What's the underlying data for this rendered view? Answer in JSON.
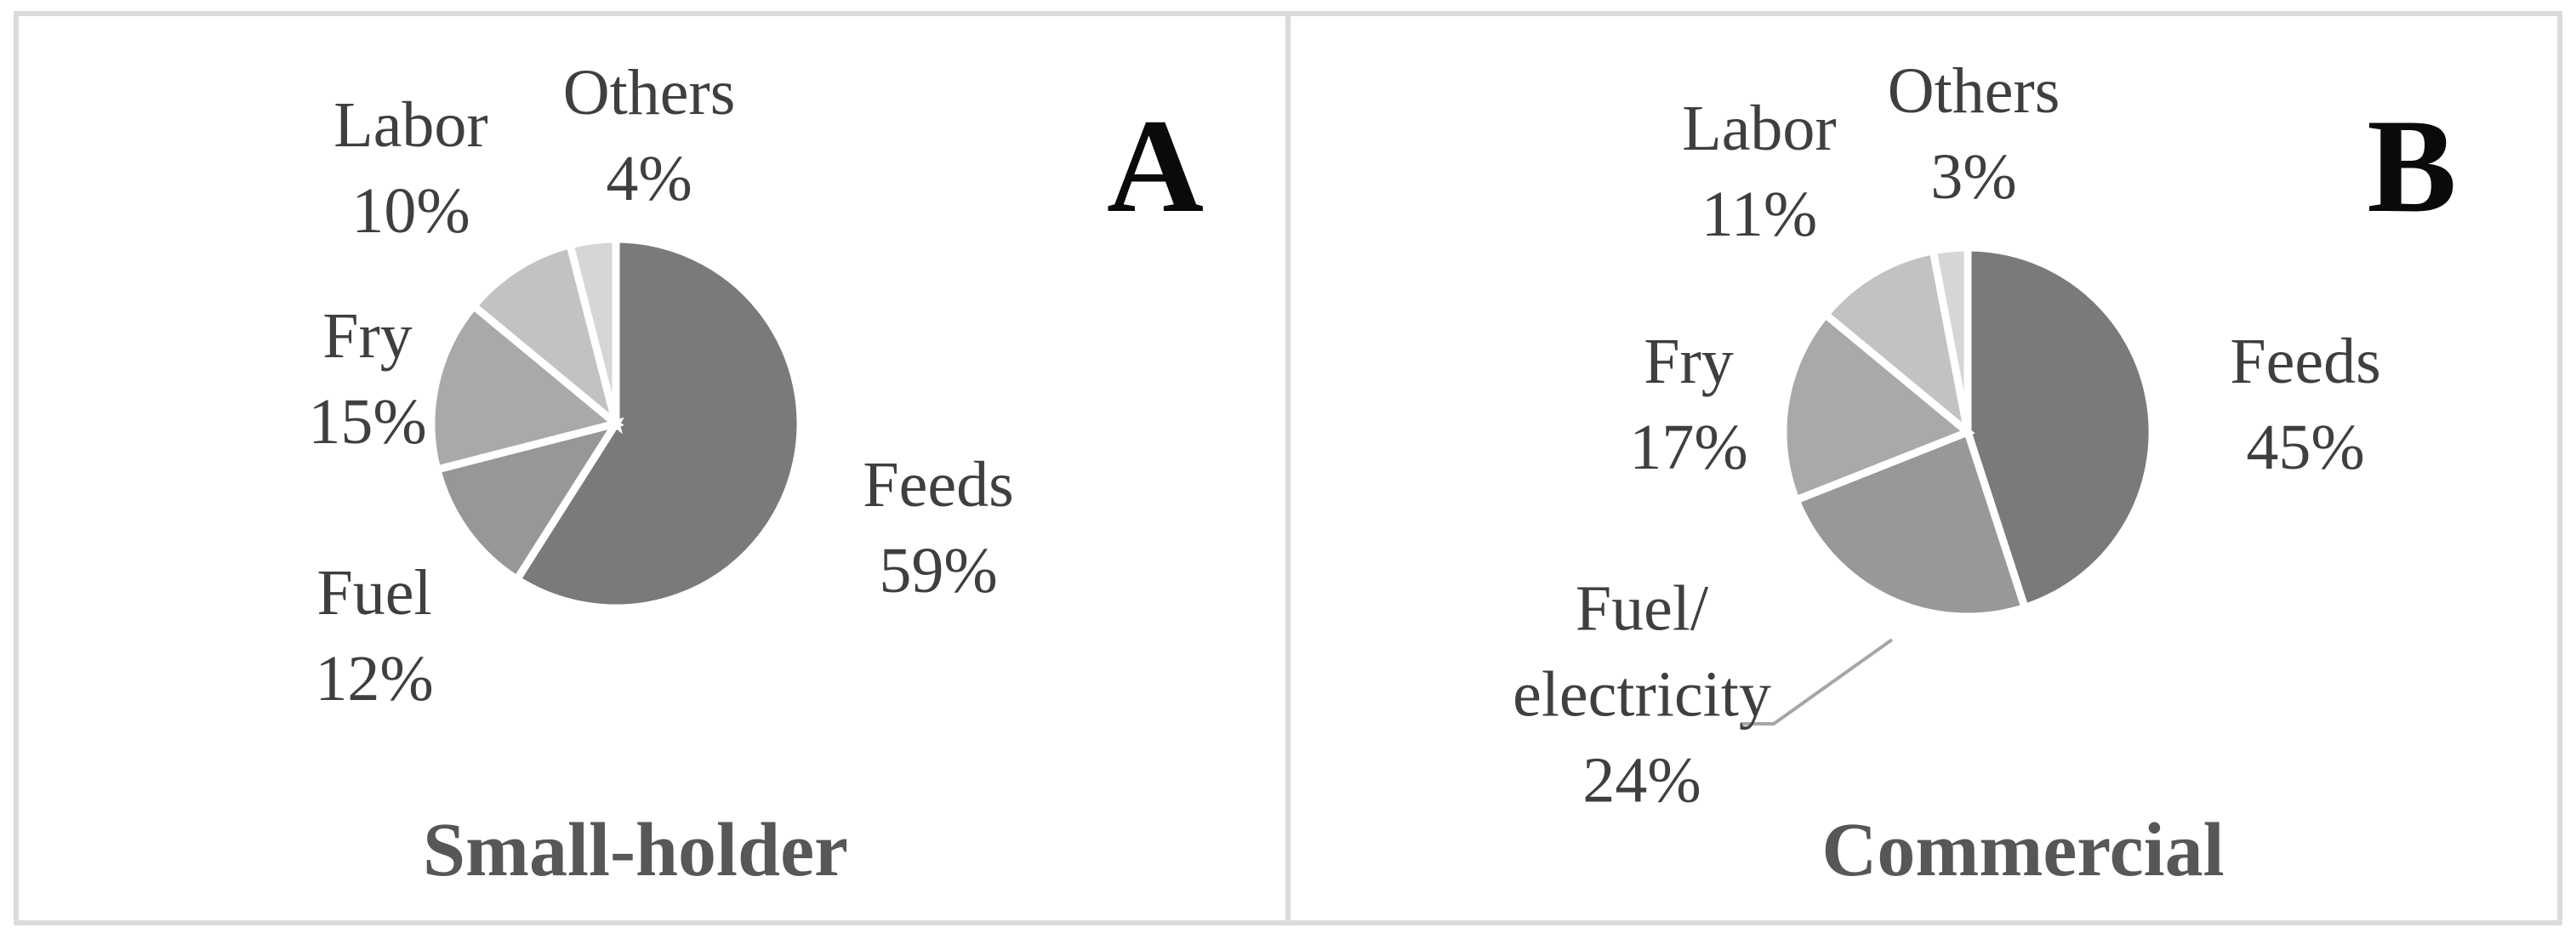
{
  "figure": {
    "background": "#ffffff",
    "border_color": "#dbdbdb"
  },
  "panels": [
    {
      "letter": "A",
      "title": "Small-holder"
    },
    {
      "letter": "B",
      "title": "Commercial"
    }
  ],
  "chart_data": [
    {
      "type": "pie",
      "panel": "A",
      "title": "Small-holder",
      "categories": [
        "Feeds",
        "Fuel",
        "Fry",
        "Labor",
        "Others"
      ],
      "values": [
        59,
        12,
        15,
        10,
        4
      ],
      "unit": "%",
      "colors": [
        "#7a7a7a",
        "#979797",
        "#a9a9a9",
        "#c2c2c2",
        "#d6d6d6"
      ],
      "start_angle_deg": 0,
      "direction": "clockwise",
      "slice_border_color": "#ffffff",
      "legend": "none",
      "slices": [
        {
          "name": "Feeds",
          "value": 59,
          "lines": [
            "Feeds",
            "59%"
          ]
        },
        {
          "name": "Fuel",
          "value": 12,
          "lines": [
            "Fuel",
            "12%"
          ]
        },
        {
          "name": "Fry",
          "value": 15,
          "lines": [
            "Fry",
            "15%"
          ]
        },
        {
          "name": "Labor",
          "value": 10,
          "lines": [
            "Labor",
            "10%"
          ]
        },
        {
          "name": "Others",
          "value": 4,
          "lines": [
            "Others",
            "4%"
          ]
        }
      ]
    },
    {
      "type": "pie",
      "panel": "B",
      "title": "Commercial",
      "categories": [
        "Feeds",
        "Fuel/electricity",
        "Fry",
        "Labor",
        "Others"
      ],
      "values": [
        45,
        24,
        17,
        11,
        3
      ],
      "unit": "%",
      "colors": [
        "#7a7a7a",
        "#989898",
        "#a9a9a9",
        "#c2c2c2",
        "#d6d6d6"
      ],
      "start_angle_deg": 0,
      "direction": "clockwise",
      "slice_border_color": "#ffffff",
      "leader_line_color": "#a6a6a6",
      "legend": "none",
      "slices": [
        {
          "name": "Feeds",
          "value": 45,
          "lines": [
            "Feeds",
            "45%"
          ]
        },
        {
          "name": "Fuel/electricity",
          "value": 24,
          "lines": [
            "Fuel/",
            "electricity",
            "24%"
          ],
          "leader": true
        },
        {
          "name": "Fry",
          "value": 17,
          "lines": [
            "Fry",
            "17%"
          ]
        },
        {
          "name": "Labor",
          "value": 11,
          "lines": [
            "Labor",
            "11%"
          ]
        },
        {
          "name": "Others",
          "value": 3,
          "lines": [
            "Others",
            "3%"
          ]
        }
      ]
    }
  ]
}
